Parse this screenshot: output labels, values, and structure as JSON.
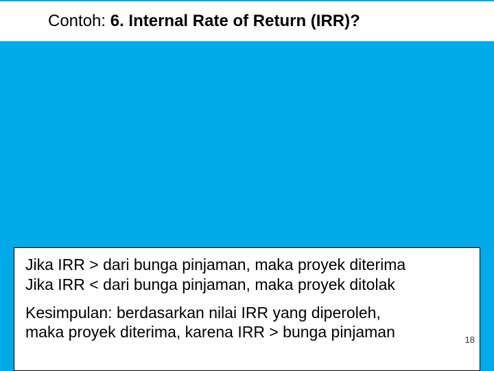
{
  "colors": {
    "slide_bg": "#00a9e8",
    "box_bg": "#ffffff",
    "text": "#000000",
    "border": "#000000"
  },
  "typography": {
    "title_fontsize_pt": 18,
    "body_fontsize_pt": 17,
    "font_family": "Arial"
  },
  "title": {
    "prefix": "Contoh: ",
    "main": "6. Internal Rate of Return (IRR)?"
  },
  "body": {
    "rule_accept": "Jika IRR > dari bunga pinjaman, maka proyek diterima",
    "rule_reject": "Jika IRR < dari bunga pinjaman, maka proyek ditolak",
    "conclusion_line": "Kesimpulan: berdasarkan nilai IRR yang diperoleh,",
    "conclusion_cut": "maka proyek diterima, karena IRR > bunga pinjaman"
  },
  "page_number": "18"
}
